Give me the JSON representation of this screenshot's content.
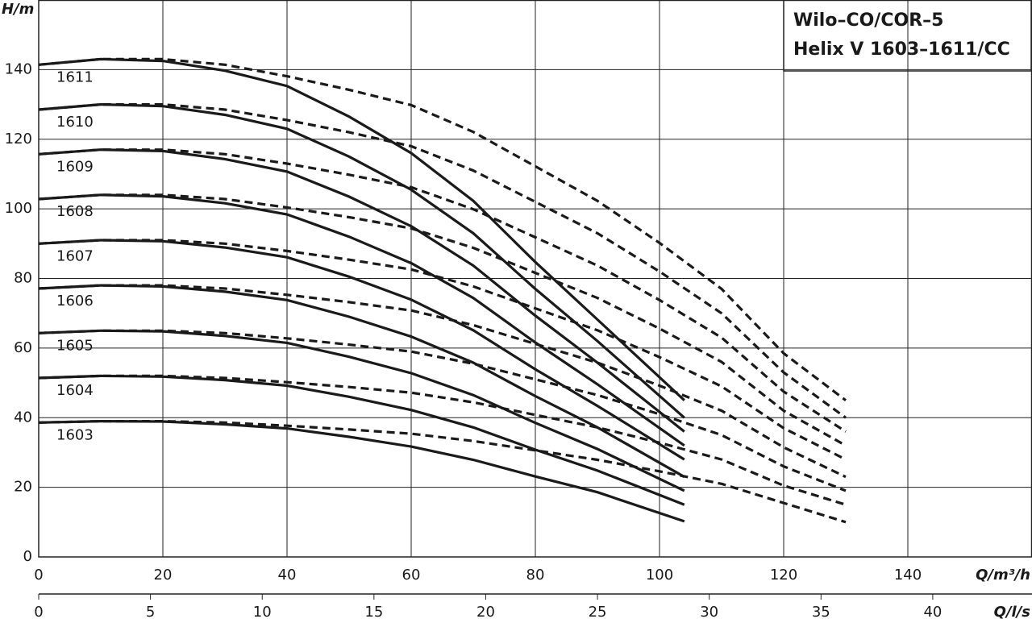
{
  "chart_data": {
    "type": "line",
    "title": [
      "Wilo–CO/COR–5",
      "Helix V 1603–1611/CC"
    ],
    "y_label": "H/m",
    "x_label": "Q/m³/h",
    "x2_label": "Q/l/s",
    "xlim": [
      0,
      160
    ],
    "xticks": [
      0,
      20,
      40,
      60,
      80,
      100,
      120,
      140
    ],
    "x2lim": [
      0,
      44.44
    ],
    "x2ticks": [
      0,
      5,
      10,
      15,
      20,
      25,
      30,
      35,
      40
    ],
    "ylim": [
      0,
      160
    ],
    "yticks": [
      0,
      20,
      40,
      60,
      80,
      100,
      120,
      140
    ],
    "grid": true,
    "series": [
      {
        "name": "1603",
        "color": "#1a1a1a",
        "dash": false,
        "x": [
          0,
          10,
          20,
          30,
          40,
          50,
          60,
          70,
          80,
          90,
          104
        ],
        "values": [
          38.6,
          39,
          38.9,
          38.1,
          36.9,
          34.5,
          31.7,
          27.9,
          23.1,
          18.6,
          10.2
        ]
      },
      {
        "name": "1604",
        "color": "#1a1a1a",
        "dash": false,
        "x": [
          0,
          10,
          20,
          30,
          40,
          50,
          60,
          70,
          80,
          90,
          104
        ],
        "values": [
          51.4,
          52,
          51.8,
          50.8,
          49.2,
          46,
          42.2,
          37.2,
          30.8,
          24.8,
          15
        ]
      },
      {
        "name": "1605",
        "color": "#1a1a1a",
        "dash": false,
        "x": [
          0,
          10,
          20,
          30,
          40,
          50,
          60,
          70,
          80,
          90,
          104
        ],
        "values": [
          64.3,
          65,
          64.8,
          63.5,
          61.5,
          57.5,
          52.8,
          46.5,
          38.5,
          31,
          19
        ]
      },
      {
        "name": "1606",
        "color": "#1a1a1a",
        "dash": false,
        "x": [
          0,
          10,
          20,
          30,
          40,
          50,
          60,
          70,
          80,
          90,
          104
        ],
        "values": [
          77.1,
          78,
          77.7,
          76.2,
          73.8,
          69,
          63.3,
          55.8,
          46.2,
          37.2,
          23
        ]
      },
      {
        "name": "1607",
        "color": "#1a1a1a",
        "dash": false,
        "x": [
          0,
          10,
          20,
          30,
          40,
          50,
          60,
          70,
          80,
          90,
          104
        ],
        "values": [
          90,
          91,
          90.7,
          88.9,
          86.1,
          80.5,
          73.9,
          65.1,
          53.9,
          43.4,
          28
        ]
      },
      {
        "name": "1608",
        "color": "#1a1a1a",
        "dash": false,
        "x": [
          0,
          10,
          20,
          30,
          40,
          50,
          60,
          70,
          80,
          90,
          104
        ],
        "values": [
          102.8,
          104,
          103.6,
          101.6,
          98.4,
          92,
          84.4,
          74.4,
          61.6,
          49.6,
          32
        ]
      },
      {
        "name": "1609",
        "color": "#1a1a1a",
        "dash": false,
        "x": [
          0,
          10,
          20,
          30,
          40,
          50,
          60,
          70,
          80,
          90,
          104
        ],
        "values": [
          115.7,
          117,
          116.6,
          114.3,
          110.7,
          103.5,
          95,
          83.7,
          69.3,
          55.8,
          36
        ]
      },
      {
        "name": "1610",
        "color": "#1a1a1a",
        "dash": false,
        "x": [
          0,
          10,
          20,
          30,
          40,
          50,
          60,
          70,
          80,
          90,
          104
        ],
        "values": [
          128.5,
          130,
          129.5,
          127,
          123,
          115,
          105.5,
          93,
          77,
          62,
          40
        ]
      },
      {
        "name": "1611",
        "color": "#1a1a1a",
        "dash": false,
        "x": [
          0,
          10,
          20,
          30,
          40,
          50,
          60,
          70,
          80,
          90,
          104
        ],
        "values": [
          141.4,
          143,
          142.5,
          139.7,
          135.3,
          126.5,
          116,
          102.3,
          84.7,
          68.2,
          45
        ]
      },
      {
        "color": "#1a1a1a",
        "dash": true,
        "x": [
          0,
          10,
          20,
          30,
          40,
          50,
          60,
          70,
          80,
          90,
          100,
          110,
          120,
          130
        ],
        "values": [
          38.6,
          39,
          39,
          38.6,
          37.7,
          36.6,
          35.4,
          33.3,
          30.6,
          27.9,
          24.6,
          21,
          15.5,
          10
        ]
      },
      {
        "color": "#1a1a1a",
        "dash": true,
        "x": [
          0,
          10,
          20,
          30,
          40,
          50,
          60,
          70,
          80,
          90,
          100,
          110,
          120,
          130
        ],
        "values": [
          51.4,
          52,
          52,
          51.4,
          50.2,
          48.8,
          47.2,
          44.4,
          40.8,
          37.2,
          32.8,
          28,
          20.5,
          15
        ]
      },
      {
        "color": "#1a1a1a",
        "dash": true,
        "x": [
          0,
          10,
          20,
          30,
          40,
          50,
          60,
          70,
          80,
          90,
          100,
          110,
          120,
          130
        ],
        "values": [
          64.3,
          65,
          65,
          64.3,
          62.8,
          61,
          59,
          55.5,
          51,
          46.5,
          41,
          35,
          26,
          19
        ]
      },
      {
        "color": "#1a1a1a",
        "dash": true,
        "x": [
          0,
          10,
          20,
          30,
          40,
          50,
          60,
          70,
          80,
          90,
          100,
          110,
          120,
          130
        ],
        "values": [
          77.1,
          78,
          78,
          77.1,
          75.3,
          73.2,
          70.8,
          66.6,
          61.2,
          55.8,
          49.2,
          42,
          31.5,
          23
        ]
      },
      {
        "color": "#1a1a1a",
        "dash": true,
        "x": [
          0,
          10,
          20,
          30,
          40,
          50,
          60,
          70,
          80,
          90,
          100,
          110,
          120,
          130
        ],
        "values": [
          90,
          91,
          91,
          90,
          87.9,
          85.4,
          82.6,
          77.7,
          71.4,
          65.1,
          57.4,
          49,
          37,
          28
        ]
      },
      {
        "color": "#1a1a1a",
        "dash": true,
        "x": [
          0,
          10,
          20,
          30,
          40,
          50,
          60,
          70,
          80,
          90,
          100,
          110,
          120,
          130
        ],
        "values": [
          102.8,
          104,
          104,
          102.8,
          100.4,
          97.6,
          94.4,
          88.8,
          81.6,
          74.4,
          65.6,
          56,
          42,
          32
        ]
      },
      {
        "color": "#1a1a1a",
        "dash": true,
        "x": [
          0,
          10,
          20,
          30,
          40,
          50,
          60,
          70,
          80,
          90,
          100,
          110,
          120,
          130
        ],
        "values": [
          115.7,
          117,
          117,
          115.7,
          113,
          109.8,
          106.2,
          99.9,
          91.8,
          83.7,
          73.8,
          63,
          47.5,
          36
        ]
      },
      {
        "color": "#1a1a1a",
        "dash": true,
        "x": [
          0,
          10,
          20,
          30,
          40,
          50,
          60,
          70,
          80,
          90,
          100,
          110,
          120,
          130
        ],
        "values": [
          128.5,
          130,
          130,
          128.5,
          125.5,
          122,
          118,
          111,
          102,
          93,
          82,
          70,
          53,
          40
        ]
      },
      {
        "color": "#1a1a1a",
        "dash": true,
        "x": [
          0,
          10,
          20,
          30,
          40,
          50,
          60,
          70,
          80,
          90,
          100,
          110,
          120,
          130
        ],
        "values": [
          141.4,
          143,
          143,
          141.4,
          138.1,
          134.2,
          129.8,
          122.1,
          112.2,
          102.3,
          90.2,
          77,
          58.5,
          45
        ]
      }
    ]
  }
}
